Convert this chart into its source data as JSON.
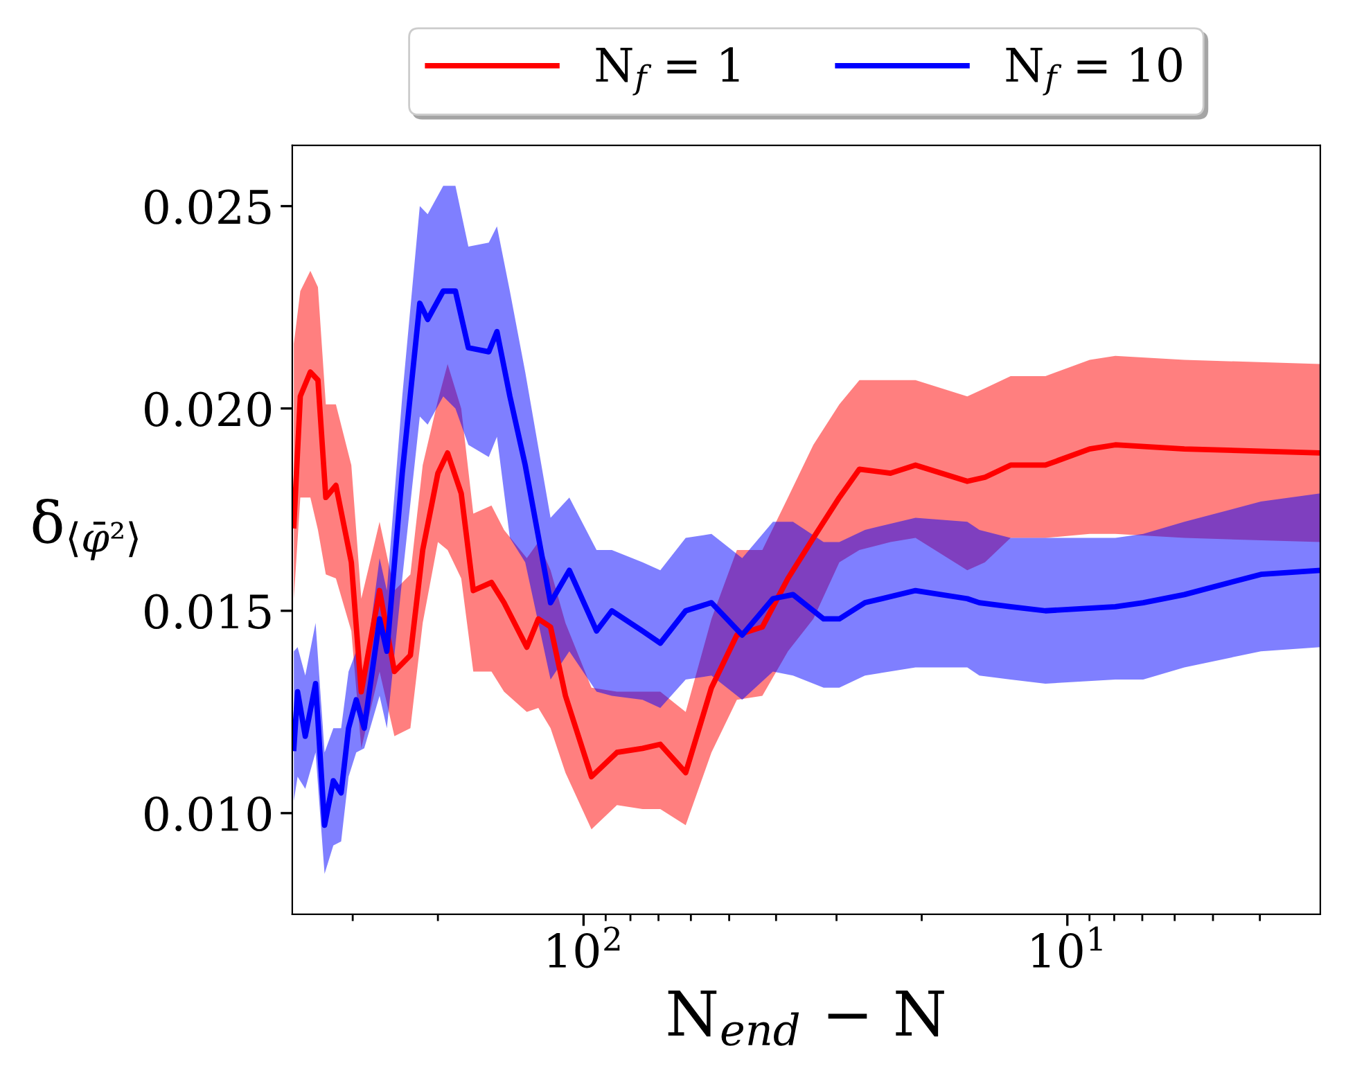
{
  "chart_data": {
    "type": "line",
    "xlabel": "N$_{end}$ − N",
    "ylabel": "δ$_{⟨φ̄²⟩}$",
    "log": "x",
    "legend": "top",
    "grid": false,
    "xlim": [
      400,
      3
    ],
    "ylim": [
      0.0075,
      0.0265
    ],
    "xticks": [
      {
        "value": 300,
        "label": null
      },
      {
        "value": 200,
        "label": null
      },
      {
        "value": 100,
        "label": "10$^{2}$"
      },
      {
        "value": 90,
        "label": null
      },
      {
        "value": 80,
        "label": null
      },
      {
        "value": 70,
        "label": null
      },
      {
        "value": 60,
        "label": null
      },
      {
        "value": 50,
        "label": null
      },
      {
        "value": 40,
        "label": null
      },
      {
        "value": 30,
        "label": null
      },
      {
        "value": 20,
        "label": null
      },
      {
        "value": 10,
        "label": "10$^{1}$"
      },
      {
        "value": 9,
        "label": null
      },
      {
        "value": 8,
        "label": null
      },
      {
        "value": 7,
        "label": null
      },
      {
        "value": 6,
        "label": null
      },
      {
        "value": 5,
        "label": null
      },
      {
        "value": 4,
        "label": null
      }
    ],
    "yticks": [
      {
        "value": 0.01,
        "label": "0.010"
      },
      {
        "value": 0.015,
        "label": "0.015"
      },
      {
        "value": 0.02,
        "label": "0.020"
      },
      {
        "value": 0.025,
        "label": "0.025"
      }
    ],
    "series": [
      {
        "name": "N$_{f}$ = 1",
        "color": "#ff0000",
        "x": [
          397,
          385,
          367,
          354,
          341,
          325,
          302,
          288,
          264,
          246,
          228,
          215,
          200,
          191,
          179,
          169,
          155,
          146,
          131,
          124,
          117,
          109,
          96.3,
          85.3,
          75.5,
          69.4,
          61.5,
          54.4,
          48.2,
          42.7,
          37.8,
          33.5,
          29.6,
          26.9,
          23.2,
          20.6,
          16.1,
          14.8,
          13.1,
          11.1,
          8.99,
          7.96,
          5.73,
          3.0
        ],
        "values": [
          0.0171,
          0.0203,
          0.0209,
          0.0207,
          0.0178,
          0.0181,
          0.0162,
          0.013,
          0.0155,
          0.0135,
          0.0139,
          0.0165,
          0.0184,
          0.0189,
          0.0179,
          0.0155,
          0.0157,
          0.0152,
          0.0141,
          0.0148,
          0.0146,
          0.0129,
          0.0109,
          0.0115,
          0.0116,
          0.0117,
          0.011,
          0.0131,
          0.0144,
          0.0146,
          0.0158,
          0.0168,
          0.0178,
          0.0185,
          0.0184,
          0.0186,
          0.0182,
          0.0183,
          0.0186,
          0.0186,
          0.019,
          0.0191,
          0.019,
          0.0189
        ],
        "upper": [
          0.0216,
          0.0229,
          0.0234,
          0.023,
          0.0201,
          0.0201,
          0.0186,
          0.0153,
          0.0172,
          0.0155,
          0.0159,
          0.0186,
          0.0202,
          0.0211,
          0.02,
          0.0174,
          0.0176,
          0.017,
          0.0163,
          0.0167,
          0.016,
          0.0147,
          0.0131,
          0.013,
          0.013,
          0.013,
          0.0125,
          0.0148,
          0.0165,
          0.0165,
          0.0178,
          0.0191,
          0.0201,
          0.0207,
          0.0207,
          0.0207,
          0.0203,
          0.0205,
          0.0208,
          0.0208,
          0.0212,
          0.0213,
          0.0212,
          0.0211
        ],
        "lower": [
          0.0153,
          0.0178,
          0.0178,
          0.017,
          0.0159,
          0.0158,
          0.0145,
          0.0116,
          0.0135,
          0.0119,
          0.0121,
          0.0147,
          0.0167,
          0.0165,
          0.0158,
          0.0135,
          0.0135,
          0.013,
          0.0125,
          0.0126,
          0.0121,
          0.011,
          0.0096,
          0.0102,
          0.0101,
          0.0101,
          0.0097,
          0.0115,
          0.0128,
          0.0129,
          0.014,
          0.0148,
          0.0162,
          0.0165,
          0.0167,
          0.0168,
          0.016,
          0.0162,
          0.0168,
          0.0168,
          0.0169,
          0.0169,
          0.0168,
          0.0167
        ]
      },
      {
        "name": "N$_{f}$ = 10",
        "color": "#0000ff",
        "x": [
          397,
          390,
          376,
          358,
          343,
          329,
          317,
          306,
          295,
          284,
          264,
          255,
          237,
          218,
          210,
          195,
          184,
          173,
          157,
          151,
          142,
          132,
          117,
          107,
          94.0,
          87.4,
          75.5,
          69.4,
          61.5,
          54.4,
          47.0,
          40.6,
          36.9,
          31.9,
          29.6,
          26.2,
          20.6,
          16.1,
          15.2,
          13.1,
          11.1,
          7.96,
          6.97,
          5.73,
          3.98,
          3.0
        ],
        "values": [
          0.0116,
          0.013,
          0.0119,
          0.0132,
          0.0097,
          0.0108,
          0.0105,
          0.0121,
          0.0128,
          0.0121,
          0.0148,
          0.014,
          0.0184,
          0.0226,
          0.0222,
          0.0229,
          0.0229,
          0.0215,
          0.0214,
          0.0219,
          0.0203,
          0.0186,
          0.0152,
          0.016,
          0.0145,
          0.015,
          0.0145,
          0.0142,
          0.015,
          0.0152,
          0.0144,
          0.0153,
          0.0154,
          0.0148,
          0.0148,
          0.0152,
          0.0155,
          0.0153,
          0.0152,
          0.0151,
          0.015,
          0.0151,
          0.0152,
          0.0154,
          0.0159,
          0.016
        ],
        "upper": [
          0.014,
          0.0141,
          0.0134,
          0.0147,
          0.0115,
          0.0121,
          0.0121,
          0.0135,
          0.014,
          0.0134,
          0.0163,
          0.0155,
          0.0203,
          0.025,
          0.0248,
          0.0255,
          0.0255,
          0.024,
          0.0241,
          0.0245,
          0.0229,
          0.0209,
          0.0173,
          0.0178,
          0.0165,
          0.0165,
          0.0162,
          0.016,
          0.0168,
          0.0169,
          0.0163,
          0.0172,
          0.0172,
          0.0167,
          0.0167,
          0.017,
          0.0173,
          0.0172,
          0.017,
          0.0168,
          0.0168,
          0.0168,
          0.0169,
          0.0172,
          0.0177,
          0.0179
        ],
        "lower": [
          0.0103,
          0.0109,
          0.0106,
          0.0115,
          0.0085,
          0.0092,
          0.0093,
          0.0109,
          0.0115,
          0.0116,
          0.0129,
          0.0121,
          0.0158,
          0.0198,
          0.0196,
          0.0203,
          0.02,
          0.0191,
          0.0188,
          0.0193,
          0.0168,
          0.0162,
          0.0133,
          0.014,
          0.013,
          0.0129,
          0.0128,
          0.0126,
          0.0133,
          0.0134,
          0.0128,
          0.0135,
          0.0134,
          0.0131,
          0.0131,
          0.0134,
          0.0136,
          0.0136,
          0.0134,
          0.0133,
          0.0132,
          0.0133,
          0.0133,
          0.0136,
          0.014,
          0.0141
        ]
      }
    ]
  }
}
